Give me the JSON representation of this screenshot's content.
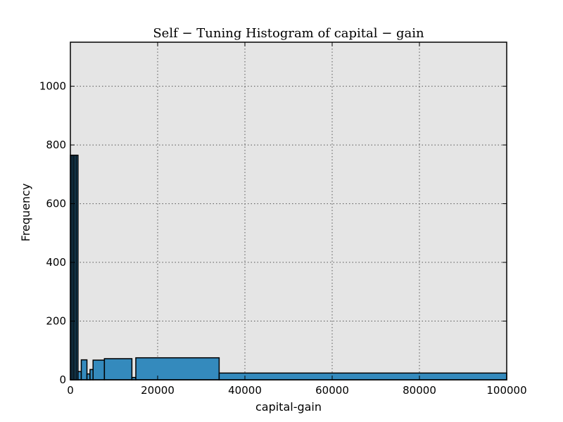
{
  "chart_data": {
    "type": "bar",
    "title": "Self − Tuning Histogram of capital − gain",
    "xlabel": "capital-gain",
    "ylabel": "Frequency",
    "xlim": [
      0,
      100000
    ],
    "ylim": [
      0,
      1150
    ],
    "xticks": [
      0,
      20000,
      40000,
      60000,
      80000,
      100000
    ],
    "yticks": [
      0,
      200,
      400,
      600,
      800,
      1000
    ],
    "grid": true,
    "colors": {
      "bar": "#348abd",
      "background": "#e5e5e5"
    },
    "bins": [
      {
        "x0": 0,
        "x1": 350,
        "count": 765
      },
      {
        "x0": 350,
        "x1": 700,
        "count": 765
      },
      {
        "x0": 700,
        "x1": 1050,
        "count": 765
      },
      {
        "x0": 1050,
        "x1": 1400,
        "count": 765
      },
      {
        "x0": 1400,
        "x1": 1750,
        "count": 765
      },
      {
        "x0": 1750,
        "x1": 2500,
        "count": 28
      },
      {
        "x0": 2500,
        "x1": 3800,
        "count": 68
      },
      {
        "x0": 3800,
        "x1": 4500,
        "count": 20
      },
      {
        "x0": 4500,
        "x1": 5200,
        "count": 35
      },
      {
        "x0": 5200,
        "x1": 7800,
        "count": 67
      },
      {
        "x0": 7800,
        "x1": 14100,
        "count": 72
      },
      {
        "x0": 14100,
        "x1": 15000,
        "count": 8
      },
      {
        "x0": 15000,
        "x1": 34100,
        "count": 75
      },
      {
        "x0": 34100,
        "x1": 100000,
        "count": 23
      }
    ]
  }
}
